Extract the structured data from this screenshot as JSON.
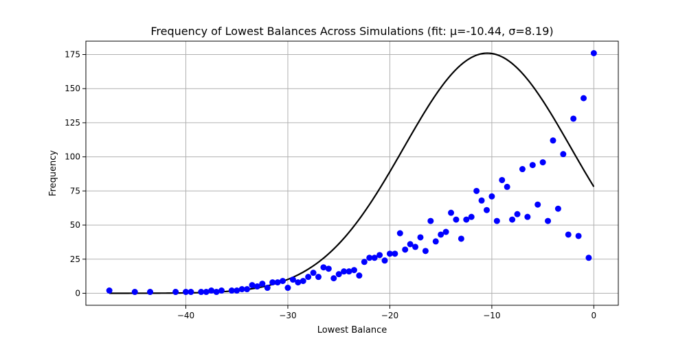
{
  "chart_data": {
    "type": "scatter",
    "title": "Frequency of Lowest Balances Across Simulations (fit: μ=-10.44, σ=8.19)",
    "xlabel": "Lowest Balance",
    "ylabel": "Frequency",
    "xlim": [
      -49.8,
      2.4
    ],
    "ylim": [
      -8.8,
      184.8
    ],
    "xticks": [
      -40,
      -30,
      -20,
      -10,
      0
    ],
    "xtick_labels": [
      "−40",
      "−30",
      "−20",
      "−10",
      "0"
    ],
    "yticks": [
      0,
      25,
      50,
      75,
      100,
      125,
      150,
      175
    ],
    "ytick_labels": [
      "0",
      "25",
      "50",
      "75",
      "100",
      "125",
      "150",
      "175"
    ],
    "grid": true,
    "point_color": "#0000ff",
    "curve_color": "#000000",
    "fit": {
      "mu": -10.44,
      "sigma": 8.19,
      "peak": 176,
      "x_range": [
        -47.5,
        0
      ]
    },
    "points": [
      [
        -47.5,
        2
      ],
      [
        -45,
        1
      ],
      [
        -43.5,
        1
      ],
      [
        -41,
        1
      ],
      [
        -40,
        1
      ],
      [
        -39.5,
        1
      ],
      [
        -38.5,
        1
      ],
      [
        -38,
        1
      ],
      [
        -37.5,
        2
      ],
      [
        -37,
        1
      ],
      [
        -36.5,
        2
      ],
      [
        -35.5,
        2
      ],
      [
        -35,
        2
      ],
      [
        -34.5,
        3
      ],
      [
        -34,
        3
      ],
      [
        -33.5,
        6
      ],
      [
        -33,
        5
      ],
      [
        -32.5,
        7
      ],
      [
        -32,
        4
      ],
      [
        -31.5,
        8
      ],
      [
        -31,
        8
      ],
      [
        -30.5,
        9
      ],
      [
        -30,
        4
      ],
      [
        -29.5,
        10
      ],
      [
        -29,
        8
      ],
      [
        -28.5,
        9
      ],
      [
        -28,
        12
      ],
      [
        -27.5,
        15
      ],
      [
        -27,
        12
      ],
      [
        -26.5,
        19
      ],
      [
        -26,
        18
      ],
      [
        -25.5,
        11
      ],
      [
        -25,
        14
      ],
      [
        -24.5,
        16
      ],
      [
        -24,
        16
      ],
      [
        -23.5,
        17
      ],
      [
        -23,
        13
      ],
      [
        -22.5,
        23
      ],
      [
        -22,
        26
      ],
      [
        -21.5,
        26
      ],
      [
        -21,
        28
      ],
      [
        -20.5,
        24
      ],
      [
        -20,
        29
      ],
      [
        -19.5,
        29
      ],
      [
        -19,
        44
      ],
      [
        -18.5,
        32
      ],
      [
        -18,
        36
      ],
      [
        -17.5,
        34
      ],
      [
        -17,
        41
      ],
      [
        -16.5,
        31
      ],
      [
        -16,
        53
      ],
      [
        -15.5,
        38
      ],
      [
        -15,
        43
      ],
      [
        -14.5,
        45
      ],
      [
        -14,
        59
      ],
      [
        -13.5,
        54
      ],
      [
        -13,
        40
      ],
      [
        -12.5,
        54
      ],
      [
        -12,
        56
      ],
      [
        -11.5,
        75
      ],
      [
        -11,
        68
      ],
      [
        -10.5,
        61
      ],
      [
        -10,
        71
      ],
      [
        -9.5,
        53
      ],
      [
        -9,
        83
      ],
      [
        -8.5,
        78
      ],
      [
        -8,
        54
      ],
      [
        -7.5,
        58
      ],
      [
        -7,
        91
      ],
      [
        -6.5,
        56
      ],
      [
        -6,
        94
      ],
      [
        -5.5,
        65
      ],
      [
        -5,
        96
      ],
      [
        -4.5,
        53
      ],
      [
        -4,
        112
      ],
      [
        -3.5,
        62
      ],
      [
        -3,
        102
      ],
      [
        -2.5,
        43
      ],
      [
        -2,
        128
      ],
      [
        -1.5,
        42
      ],
      [
        -1,
        143
      ],
      [
        -0.5,
        26
      ],
      [
        0,
        176
      ]
    ]
  }
}
